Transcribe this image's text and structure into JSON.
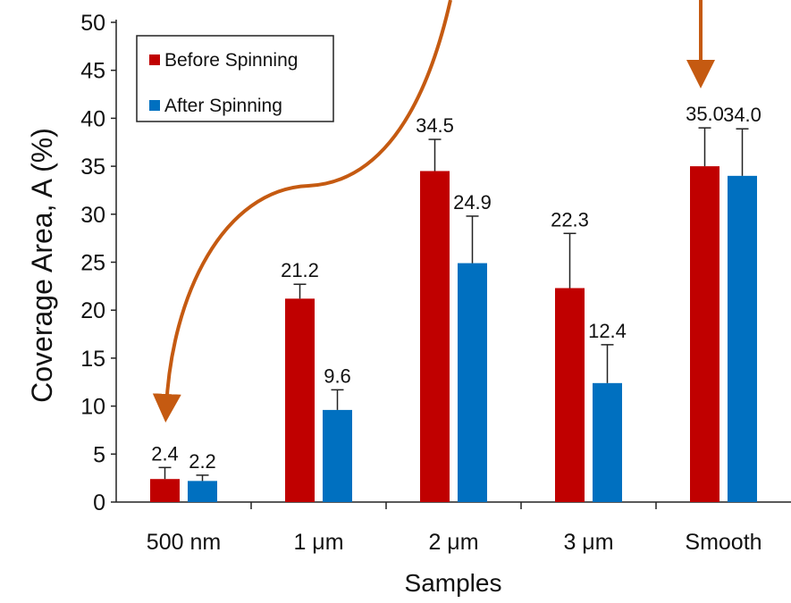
{
  "chart_data": {
    "type": "bar",
    "title": "",
    "xlabel": "Samples",
    "ylabel": "Coverage Area, A (%)",
    "ylim": [
      0,
      50
    ],
    "yticks": [
      0,
      5,
      10,
      15,
      20,
      25,
      30,
      35,
      40,
      45,
      50
    ],
    "categories": [
      "500 nm",
      "1 μm",
      "2 μm",
      "3 μm",
      "Smooth"
    ],
    "series": [
      {
        "name": "Before Spinning",
        "color": "#c00000",
        "values": [
          2.4,
          21.2,
          34.5,
          22.3,
          35.0
        ],
        "error_upper": [
          1.2,
          1.5,
          3.3,
          5.7,
          4.0
        ],
        "labels": [
          "2.4",
          "21.2",
          "34.5",
          "22.3",
          "35.0"
        ]
      },
      {
        "name": "After Spinning",
        "color": "#0070c0",
        "values": [
          2.2,
          9.6,
          24.9,
          12.4,
          34.0
        ],
        "error_upper": [
          0.6,
          2.1,
          4.9,
          4.0,
          4.9
        ],
        "labels": [
          "2.2",
          "9.6",
          "24.9",
          "12.4",
          "34.0"
        ]
      }
    ],
    "legend": {
      "position": "top-left"
    },
    "grid": false,
    "annotations": [
      {
        "type": "arrow",
        "color": "#c55a11",
        "points_to": "500 nm"
      },
      {
        "type": "arrow",
        "color": "#c55a11",
        "points_to": "Smooth"
      }
    ]
  }
}
